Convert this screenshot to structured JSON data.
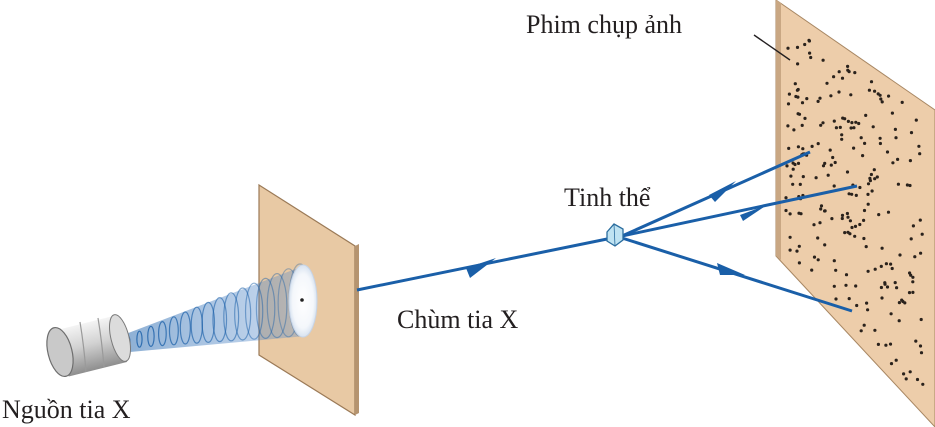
{
  "labels": {
    "source": "Nguồn tia X",
    "beam": "Chùm tia X",
    "crystal": "Tinh thể",
    "film": "Phim chụp ảnh"
  },
  "colors": {
    "beam": "#1a5fa8",
    "screen": "#e8c9a4",
    "film": "#edcdaa",
    "crystal": "#bfe3f2",
    "text": "#231f20"
  }
}
